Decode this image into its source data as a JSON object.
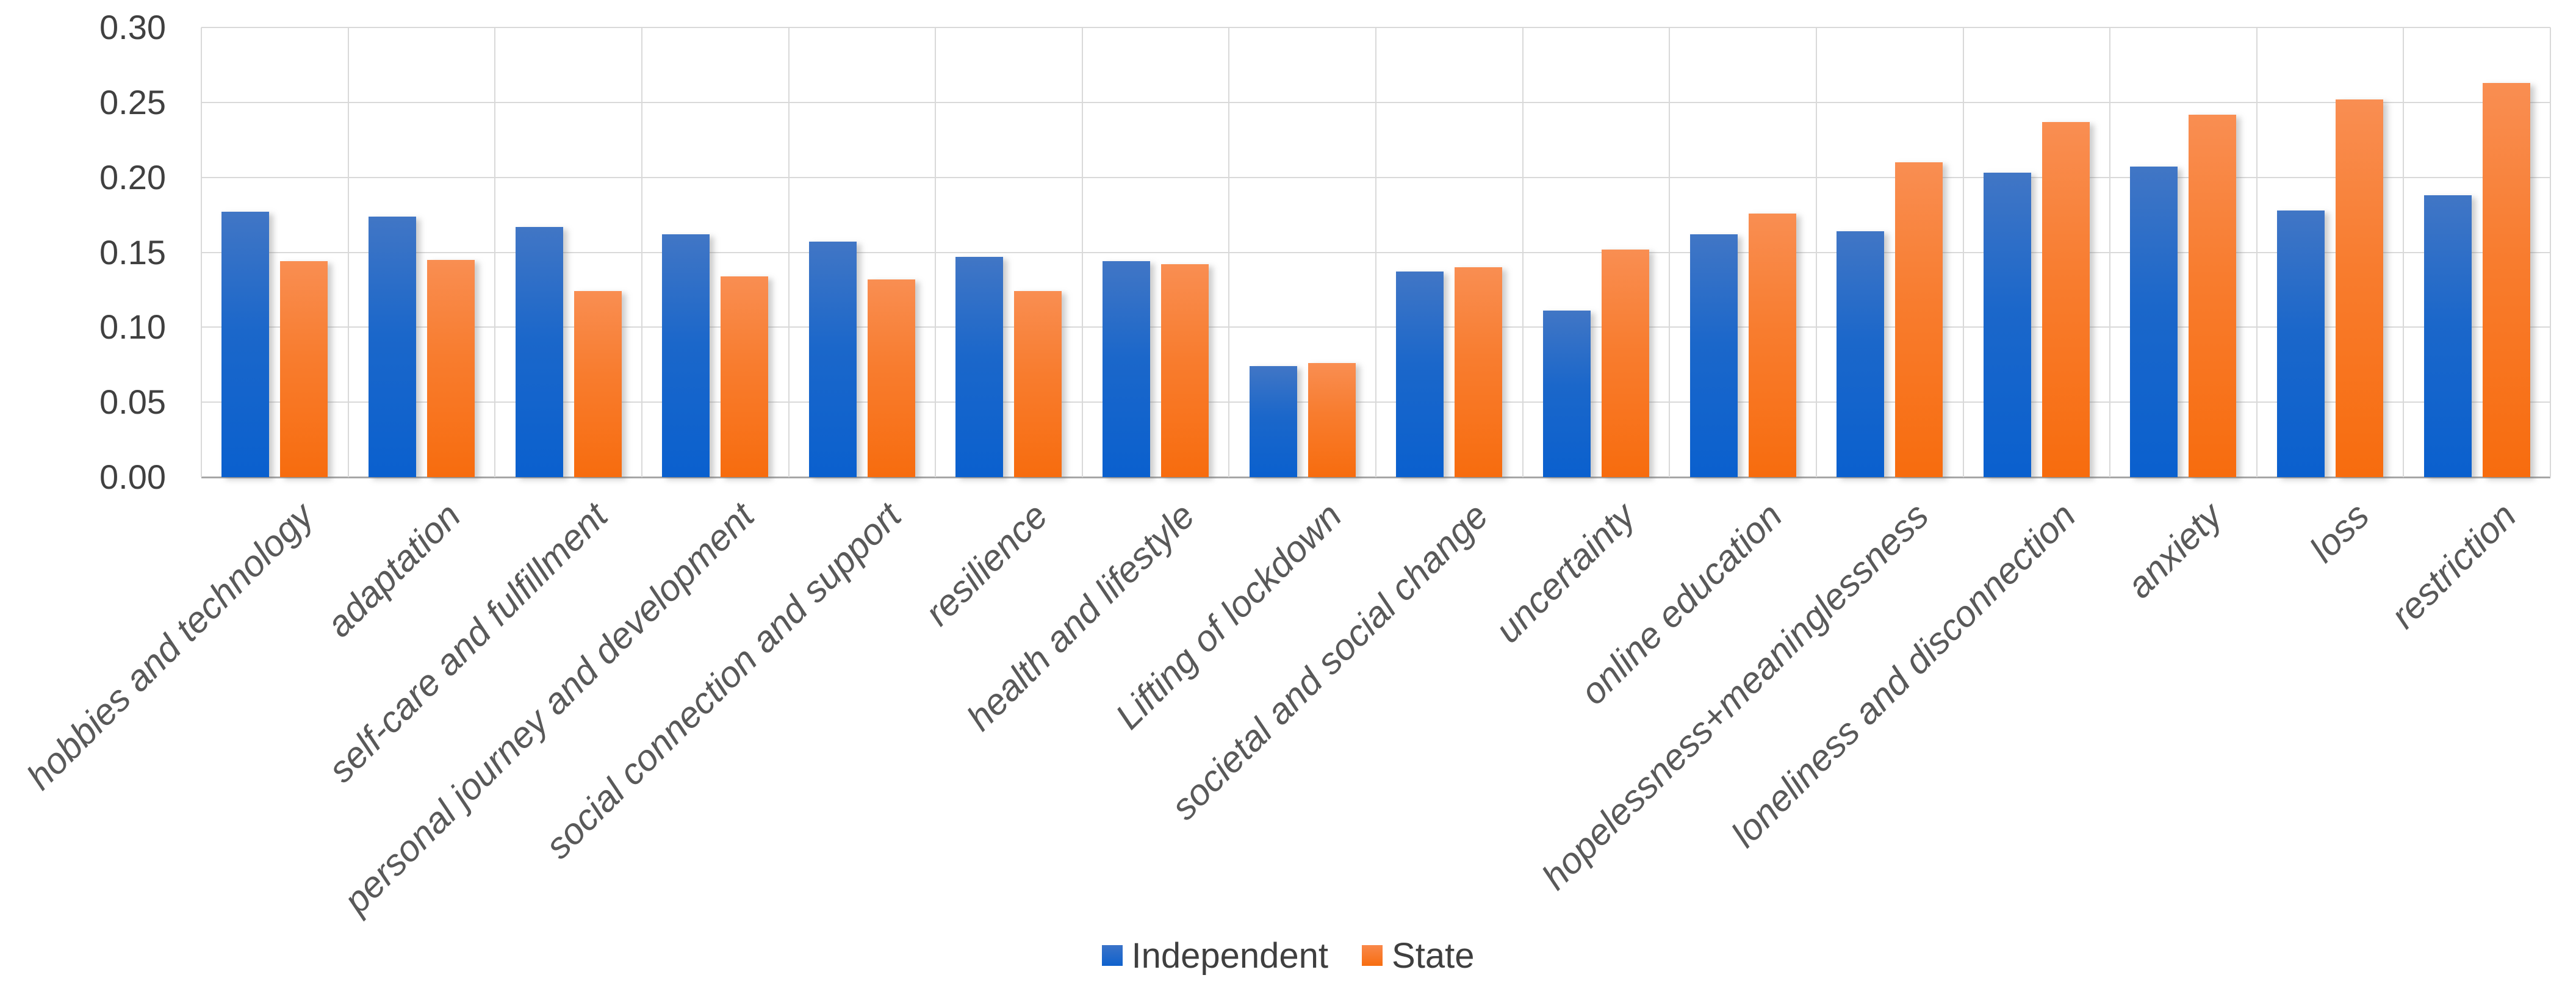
{
  "chart_data": {
    "type": "bar",
    "title": "",
    "categories": [
      "hobbies and technology",
      "adaptation",
      "self-care and fulfillment",
      "personal journey and development",
      "social connection and support",
      "resilience",
      "health and lifestyle",
      "Lifting of lockdown",
      "societal and social change",
      "uncertainty",
      "online education",
      "hopelessness+meaninglessness",
      "loneliness and disconnection",
      "anxiety",
      "loss",
      "restriction"
    ],
    "series": [
      {
        "name": "Independent",
        "color": "#1b67ca",
        "values": [
          0.177,
          0.174,
          0.167,
          0.162,
          0.157,
          0.147,
          0.144,
          0.074,
          0.137,
          0.111,
          0.162,
          0.164,
          0.203,
          0.207,
          0.178,
          0.188
        ]
      },
      {
        "name": "State",
        "color": "#f87c2e",
        "values": [
          0.144,
          0.145,
          0.124,
          0.134,
          0.132,
          0.124,
          0.142,
          0.076,
          0.14,
          0.152,
          0.176,
          0.21,
          0.237,
          0.242,
          0.252,
          0.263
        ]
      }
    ],
    "ylim": [
      0,
      0.3
    ],
    "ytick_step": 0.05,
    "ytick_labels": [
      "0.00",
      "0.05",
      "0.10",
      "0.15",
      "0.20",
      "0.25",
      "0.30"
    ],
    "grid": true,
    "category_label_rotation_deg": -45,
    "legend_position": "bottom",
    "gridline_color": "#d9d9d9",
    "axis_line_color": "#a6a6a6",
    "tick_label_color": "#404040",
    "category_label_color": "#595959"
  }
}
